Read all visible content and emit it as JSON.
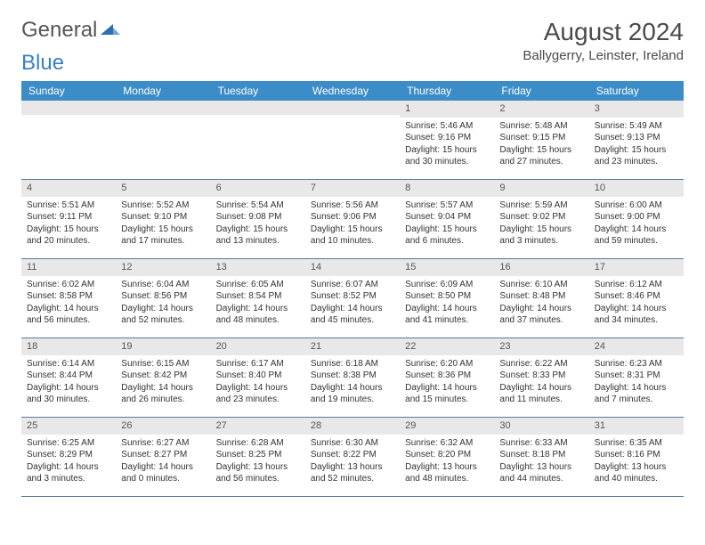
{
  "logo": {
    "text1": "General",
    "text2": "Blue"
  },
  "title": "August 2024",
  "location": "Ballygerry, Leinster, Ireland",
  "colors": {
    "header_bg": "#3c8cc8",
    "header_text": "#ffffff",
    "daynum_bg": "#e8e8e8",
    "border": "#5a7a9a",
    "body_text": "#333333"
  },
  "dayNames": [
    "Sunday",
    "Monday",
    "Tuesday",
    "Wednesday",
    "Thursday",
    "Friday",
    "Saturday"
  ],
  "weeks": [
    [
      null,
      null,
      null,
      null,
      {
        "n": "1",
        "sr": "5:46 AM",
        "ss": "9:16 PM",
        "dl": "15 hours and 30 minutes."
      },
      {
        "n": "2",
        "sr": "5:48 AM",
        "ss": "9:15 PM",
        "dl": "15 hours and 27 minutes."
      },
      {
        "n": "3",
        "sr": "5:49 AM",
        "ss": "9:13 PM",
        "dl": "15 hours and 23 minutes."
      }
    ],
    [
      {
        "n": "4",
        "sr": "5:51 AM",
        "ss": "9:11 PM",
        "dl": "15 hours and 20 minutes."
      },
      {
        "n": "5",
        "sr": "5:52 AM",
        "ss": "9:10 PM",
        "dl": "15 hours and 17 minutes."
      },
      {
        "n": "6",
        "sr": "5:54 AM",
        "ss": "9:08 PM",
        "dl": "15 hours and 13 minutes."
      },
      {
        "n": "7",
        "sr": "5:56 AM",
        "ss": "9:06 PM",
        "dl": "15 hours and 10 minutes."
      },
      {
        "n": "8",
        "sr": "5:57 AM",
        "ss": "9:04 PM",
        "dl": "15 hours and 6 minutes."
      },
      {
        "n": "9",
        "sr": "5:59 AM",
        "ss": "9:02 PM",
        "dl": "15 hours and 3 minutes."
      },
      {
        "n": "10",
        "sr": "6:00 AM",
        "ss": "9:00 PM",
        "dl": "14 hours and 59 minutes."
      }
    ],
    [
      {
        "n": "11",
        "sr": "6:02 AM",
        "ss": "8:58 PM",
        "dl": "14 hours and 56 minutes."
      },
      {
        "n": "12",
        "sr": "6:04 AM",
        "ss": "8:56 PM",
        "dl": "14 hours and 52 minutes."
      },
      {
        "n": "13",
        "sr": "6:05 AM",
        "ss": "8:54 PM",
        "dl": "14 hours and 48 minutes."
      },
      {
        "n": "14",
        "sr": "6:07 AM",
        "ss": "8:52 PM",
        "dl": "14 hours and 45 minutes."
      },
      {
        "n": "15",
        "sr": "6:09 AM",
        "ss": "8:50 PM",
        "dl": "14 hours and 41 minutes."
      },
      {
        "n": "16",
        "sr": "6:10 AM",
        "ss": "8:48 PM",
        "dl": "14 hours and 37 minutes."
      },
      {
        "n": "17",
        "sr": "6:12 AM",
        "ss": "8:46 PM",
        "dl": "14 hours and 34 minutes."
      }
    ],
    [
      {
        "n": "18",
        "sr": "6:14 AM",
        "ss": "8:44 PM",
        "dl": "14 hours and 30 minutes."
      },
      {
        "n": "19",
        "sr": "6:15 AM",
        "ss": "8:42 PM",
        "dl": "14 hours and 26 minutes."
      },
      {
        "n": "20",
        "sr": "6:17 AM",
        "ss": "8:40 PM",
        "dl": "14 hours and 23 minutes."
      },
      {
        "n": "21",
        "sr": "6:18 AM",
        "ss": "8:38 PM",
        "dl": "14 hours and 19 minutes."
      },
      {
        "n": "22",
        "sr": "6:20 AM",
        "ss": "8:36 PM",
        "dl": "14 hours and 15 minutes."
      },
      {
        "n": "23",
        "sr": "6:22 AM",
        "ss": "8:33 PM",
        "dl": "14 hours and 11 minutes."
      },
      {
        "n": "24",
        "sr": "6:23 AM",
        "ss": "8:31 PM",
        "dl": "14 hours and 7 minutes."
      }
    ],
    [
      {
        "n": "25",
        "sr": "6:25 AM",
        "ss": "8:29 PM",
        "dl": "14 hours and 3 minutes."
      },
      {
        "n": "26",
        "sr": "6:27 AM",
        "ss": "8:27 PM",
        "dl": "14 hours and 0 minutes."
      },
      {
        "n": "27",
        "sr": "6:28 AM",
        "ss": "8:25 PM",
        "dl": "13 hours and 56 minutes."
      },
      {
        "n": "28",
        "sr": "6:30 AM",
        "ss": "8:22 PM",
        "dl": "13 hours and 52 minutes."
      },
      {
        "n": "29",
        "sr": "6:32 AM",
        "ss": "8:20 PM",
        "dl": "13 hours and 48 minutes."
      },
      {
        "n": "30",
        "sr": "6:33 AM",
        "ss": "8:18 PM",
        "dl": "13 hours and 44 minutes."
      },
      {
        "n": "31",
        "sr": "6:35 AM",
        "ss": "8:16 PM",
        "dl": "13 hours and 40 minutes."
      }
    ]
  ],
  "labels": {
    "sunrise": "Sunrise:",
    "sunset": "Sunset:",
    "daylight": "Daylight:"
  }
}
